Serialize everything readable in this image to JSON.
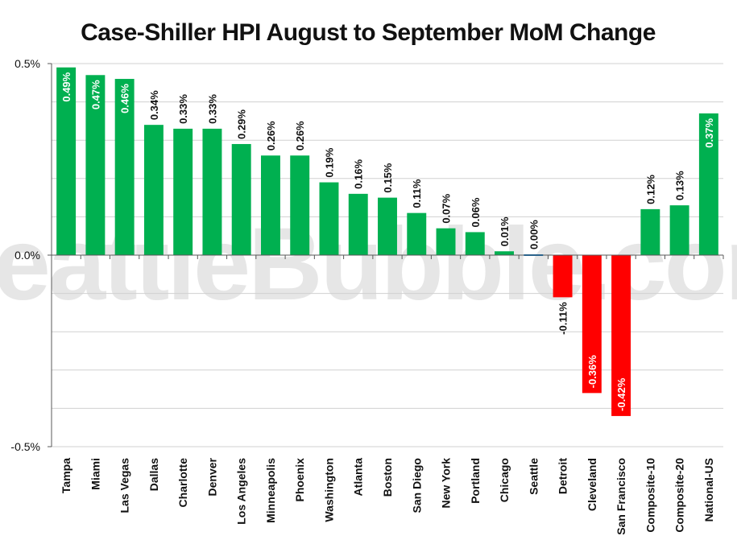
{
  "chart_data": {
    "type": "bar",
    "title": "Case-Shiller HPI August to September MoM Change",
    "watermark": "SeattleBubble.com",
    "categories": [
      "Tampa",
      "Miami",
      "Las Vegas",
      "Dallas",
      "Charlotte",
      "Denver",
      "Los Angeles",
      "Minneapolis",
      "Phoenix",
      "Washington",
      "Atlanta",
      "Boston",
      "San Diego",
      "New York",
      "Portland",
      "Chicago",
      "Seattle",
      "Detroit",
      "Cleveland",
      "San Francisco",
      "Composite-10",
      "Composite-20",
      "National-US"
    ],
    "values": [
      0.49,
      0.47,
      0.46,
      0.34,
      0.33,
      0.33,
      0.29,
      0.26,
      0.26,
      0.19,
      0.16,
      0.15,
      0.11,
      0.07,
      0.06,
      0.01,
      0.0,
      -0.11,
      -0.36,
      -0.42,
      0.12,
      0.13,
      0.37
    ],
    "data_labels": [
      "0.49%",
      "0.47%",
      "0.46%",
      "0.34%",
      "0.33%",
      "0.33%",
      "0.29%",
      "0.26%",
      "0.26%",
      "0.19%",
      "0.16%",
      "0.15%",
      "0.11%",
      "0.07%",
      "0.06%",
      "0.01%",
      "0.00%",
      "-0.11%",
      "-0.36%",
      "-0.42%",
      "0.12%",
      "0.13%",
      "0.37%"
    ],
    "y_tick_labels": [
      "0.5%",
      "0.0%",
      "-0.5%"
    ],
    "y_ticks": [
      0.5,
      0.0,
      -0.5
    ],
    "ylim": [
      -0.5,
      0.5
    ],
    "xlabel": "",
    "ylabel": "",
    "grid": true,
    "colors": {
      "positive": "#00b050",
      "negative": "#ff0000",
      "seattle": "#0070c0"
    }
  }
}
